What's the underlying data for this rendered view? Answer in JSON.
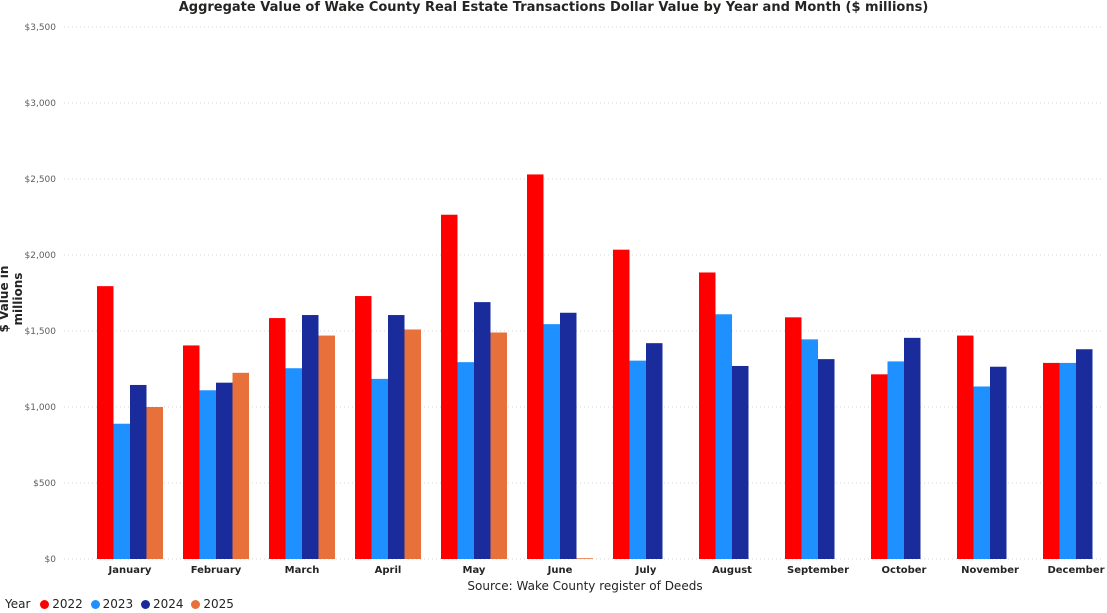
{
  "chart_data": {
    "type": "bar",
    "title": "Aggregate Value of Wake County Real Estate Transactions Dollar Value by Year and Month ($ millions)",
    "xlabel": "Source: Wake County register of Deeds",
    "ylabel": "$ Value in millions",
    "categories": [
      "January",
      "February",
      "March",
      "April",
      "May",
      "June",
      "July",
      "August",
      "September",
      "October",
      "November",
      "December"
    ],
    "ylim": [
      0,
      3500
    ],
    "yticks": [
      0,
      500,
      1000,
      1500,
      2000,
      2500,
      3000,
      3500
    ],
    "ytick_labels": [
      "$0",
      "$500",
      "$1,000",
      "$1,500",
      "$2,000",
      "$2,500",
      "$3,000",
      "$3,500"
    ],
    "grid": true,
    "legend": {
      "title": "Year",
      "placement": "bottom-left"
    },
    "series": [
      {
        "name": "2022",
        "color": "#ff0000",
        "values": [
          1795,
          1405,
          1585,
          1730,
          2265,
          2530,
          2035,
          1885,
          1590,
          1215,
          1470,
          1290
        ]
      },
      {
        "name": "2023",
        "color": "#1e90ff",
        "values": [
          890,
          1110,
          1255,
          1185,
          1295,
          1545,
          1305,
          1610,
          1445,
          1300,
          1135,
          1290
        ]
      },
      {
        "name": "2024",
        "color": "#1a2b9c",
        "values": [
          1145,
          1160,
          1605,
          1605,
          1690,
          1620,
          1420,
          1270,
          1315,
          1455,
          1265,
          1380
        ]
      },
      {
        "name": "2025",
        "color": "#e8703a",
        "values": [
          1000,
          1225,
          1470,
          1510,
          1490,
          5,
          null,
          null,
          null,
          null,
          null,
          null
        ]
      }
    ]
  }
}
